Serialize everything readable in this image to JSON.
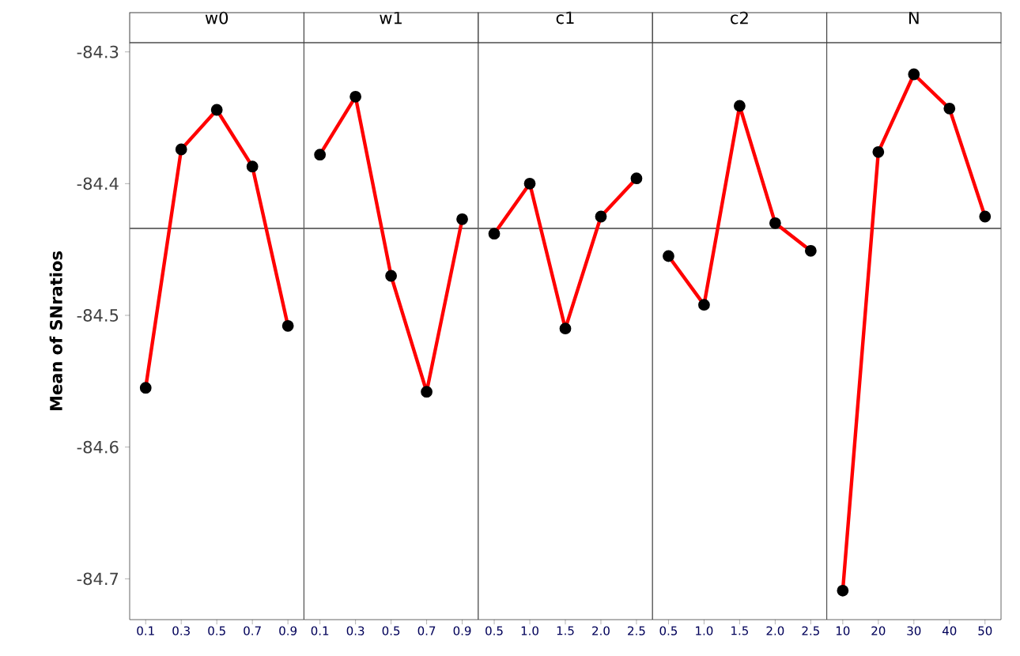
{
  "chart_data": [
    {
      "type": "line",
      "title": "w0",
      "ylabel": "Mean of SNratios",
      "categories": [
        "0.1",
        "0.3",
        "0.5",
        "0.7",
        "0.9"
      ],
      "series": [
        {
          "color": "#ff0000",
          "values": [
            -84.555,
            -84.374,
            -84.344,
            -84.387,
            -84.508
          ]
        }
      ],
      "ylim": [
        -84.731,
        -84.293
      ],
      "yticks": [
        -84.7,
        -84.6,
        -84.5,
        -84.4,
        -84.3
      ],
      "ref_lines": [
        {
          "axis": "y",
          "value": -84.434,
          "color": "#707070"
        }
      ],
      "marker": "circle",
      "grid": false
    },
    {
      "type": "line",
      "title": "w1",
      "categories": [
        "0.1",
        "0.3",
        "0.5",
        "0.7",
        "0.9"
      ],
      "series": [
        {
          "color": "#ff0000",
          "values": [
            -84.378,
            -84.334,
            -84.47,
            -84.558,
            -84.427
          ]
        }
      ],
      "ylim": [
        -84.731,
        -84.293
      ],
      "tick_labels": "x",
      "ref_lines": [
        {
          "axis": "y",
          "value": -84.434,
          "color": "#707070"
        }
      ],
      "marker": "circle",
      "grid": false
    },
    {
      "type": "line",
      "title": "c1",
      "categories": [
        "0.5",
        "1.0",
        "1.5",
        "2.0",
        "2.5"
      ],
      "series": [
        {
          "color": "#ff0000",
          "values": [
            -84.438,
            -84.4,
            -84.51,
            -84.425,
            -84.396
          ]
        }
      ],
      "ylim": [
        -84.731,
        -84.293
      ],
      "tick_labels": "x",
      "ref_lines": [
        {
          "axis": "y",
          "value": -84.434,
          "color": "#707070"
        }
      ],
      "marker": "circle",
      "grid": false
    },
    {
      "type": "line",
      "title": "c2",
      "categories": [
        "0.5",
        "1.0",
        "1.5",
        "2.0",
        "2.5"
      ],
      "series": [
        {
          "color": "#ff0000",
          "values": [
            -84.455,
            -84.492,
            -84.341,
            -84.43,
            -84.451
          ]
        }
      ],
      "ylim": [
        -84.731,
        -84.293
      ],
      "tick_labels": "x",
      "ref_lines": [
        {
          "axis": "y",
          "value": -84.434,
          "color": "#707070"
        }
      ],
      "marker": "circle",
      "grid": false
    },
    {
      "type": "line",
      "title": "N",
      "categories": [
        "10",
        "20",
        "30",
        "40",
        "50"
      ],
      "series": [
        {
          "color": "#ff0000",
          "values": [
            -84.709,
            -84.376,
            -84.317,
            -84.343,
            -84.425
          ]
        }
      ],
      "ylim": [
        -84.731,
        -84.293
      ],
      "tick_labels": "x",
      "ref_lines": [
        {
          "axis": "y",
          "value": -84.434,
          "color": "#707070"
        }
      ],
      "marker": "circle",
      "grid": false
    }
  ]
}
